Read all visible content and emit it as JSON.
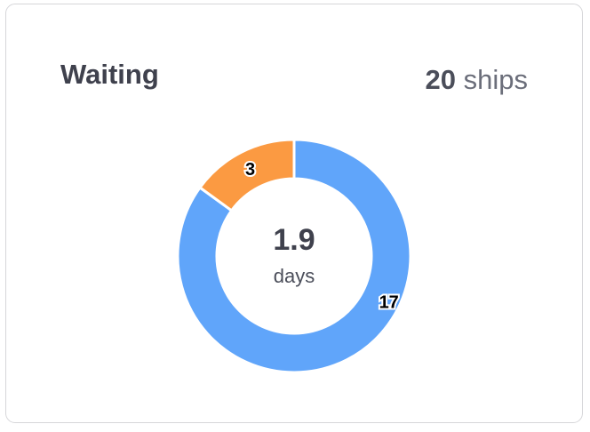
{
  "card": {
    "title": "Waiting",
    "count_value": "20",
    "count_unit": "ships"
  },
  "chart_data": {
    "type": "pie",
    "variant": "donut",
    "center_value": "1.9",
    "center_unit": "days",
    "slices": [
      {
        "value": 17,
        "label": "17",
        "color": "#60a5fa"
      },
      {
        "value": 3,
        "label": "3",
        "color": "#fb9a42"
      }
    ],
    "start": "top",
    "direction": "clockwise"
  }
}
